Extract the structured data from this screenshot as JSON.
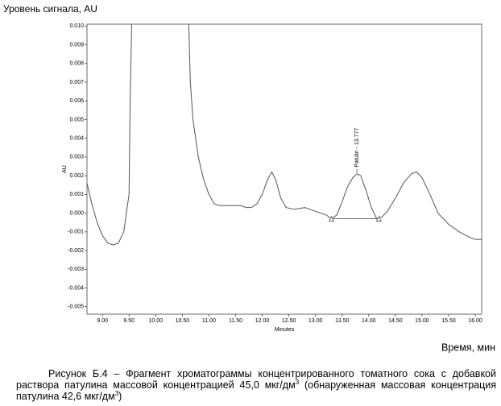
{
  "chart_data": {
    "type": "line",
    "y_title": "Уровень сигнала, AU",
    "x_title": "Время, мин",
    "y_axis_label": "AU",
    "x_axis_label": "Minutes",
    "xlim": [
      8.71,
      16.12
    ],
    "ylim": [
      -0.0054,
      0.0101
    ],
    "xticks": [
      {
        "value": 9,
        "label": "9.00"
      },
      {
        "value": 9.5,
        "label": "9.50"
      },
      {
        "value": 10,
        "label": "10.00"
      },
      {
        "value": 10.5,
        "label": "10.50"
      },
      {
        "value": 11,
        "label": "11.00"
      },
      {
        "value": 11.5,
        "label": "11.50"
      },
      {
        "value": 12,
        "label": "12.00"
      },
      {
        "value": 12.5,
        "label": "12.50"
      },
      {
        "value": 13,
        "label": "13.00"
      },
      {
        "value": 13.5,
        "label": "13.50"
      },
      {
        "value": 14,
        "label": "14.00"
      },
      {
        "value": 14.5,
        "label": "14.50"
      },
      {
        "value": 15,
        "label": "15.00"
      },
      {
        "value": 15.5,
        "label": "15.50"
      },
      {
        "value": 16,
        "label": "16.00"
      }
    ],
    "yticks": [
      {
        "value": 0.01,
        "label": "0.010"
      },
      0.009,
      0.008,
      0.007,
      0.006,
      0.005,
      0.004,
      0.003,
      0.002,
      0.001,
      {
        "value": 0,
        "label": "0.000"
      },
      -0.001,
      -0.002,
      -0.003,
      -0.004,
      -0.005
    ],
    "series": [
      {
        "color": "#555555",
        "x": [
          8.71,
          8.8,
          8.9,
          9.0,
          9.1,
          9.2,
          9.3,
          9.4,
          9.5,
          9.52,
          9.55,
          10.0,
          10.62,
          10.65,
          10.7,
          10.8,
          10.9,
          11.0,
          11.1,
          11.2,
          11.3,
          11.4,
          11.5,
          11.6,
          11.7,
          11.8,
          11.9,
          12.0,
          12.1,
          12.18,
          12.25,
          12.35,
          12.45,
          12.6,
          12.8,
          13.0,
          13.2,
          13.3,
          13.4,
          13.5,
          13.6,
          13.7,
          13.78,
          13.85,
          13.95,
          14.05,
          14.15,
          14.25,
          14.35,
          14.5,
          14.65,
          14.8,
          14.9,
          15.0,
          15.15,
          15.3,
          15.5,
          15.7,
          15.9,
          16.0,
          16.12
        ],
        "values": [
          0.0016,
          0.0005,
          -0.0005,
          -0.0012,
          -0.0016,
          -0.0017,
          -0.0016,
          -0.001,
          0.001,
          0.006,
          0.0101,
          null,
          0.0101,
          0.007,
          0.005,
          0.003,
          0.0018,
          0.001,
          0.0005,
          0.0004,
          0.0004,
          0.0004,
          0.0004,
          0.0004,
          0.0003,
          0.0003,
          0.0005,
          0.001,
          0.0018,
          0.0022,
          0.0018,
          0.0008,
          0.0003,
          0.0002,
          0.0003,
          0.0001,
          -0.0001,
          -0.0003,
          -0.0001,
          0.0006,
          0.0014,
          0.0019,
          0.0021,
          0.002,
          0.0012,
          0.0003,
          -0.0003,
          -0.0002,
          0.0001,
          0.0008,
          0.0016,
          0.0021,
          0.0022,
          0.0019,
          0.001,
          0.0,
          -0.0006,
          -0.001,
          -0.0013,
          -0.0014,
          -0.0014
        ]
      }
    ],
    "annotation": {
      "text": "Patulin - 13.777",
      "x": 13.777,
      "y": 0.0021
    },
    "baseline": {
      "x": [
        13.3,
        14.19
      ],
      "y": [
        -0.0003,
        -0.0003
      ]
    },
    "caption": [
      "Рисунок Б.4 – Фрагмент хроматограммы концентрированного томатного сока с добавкой раствора патулина массовой концентрацией 45,0 мкг/дм",
      "3",
      " (обнаруженная массовая концентрация патулина 42,6 мкг/дм",
      "3",
      ")"
    ]
  }
}
